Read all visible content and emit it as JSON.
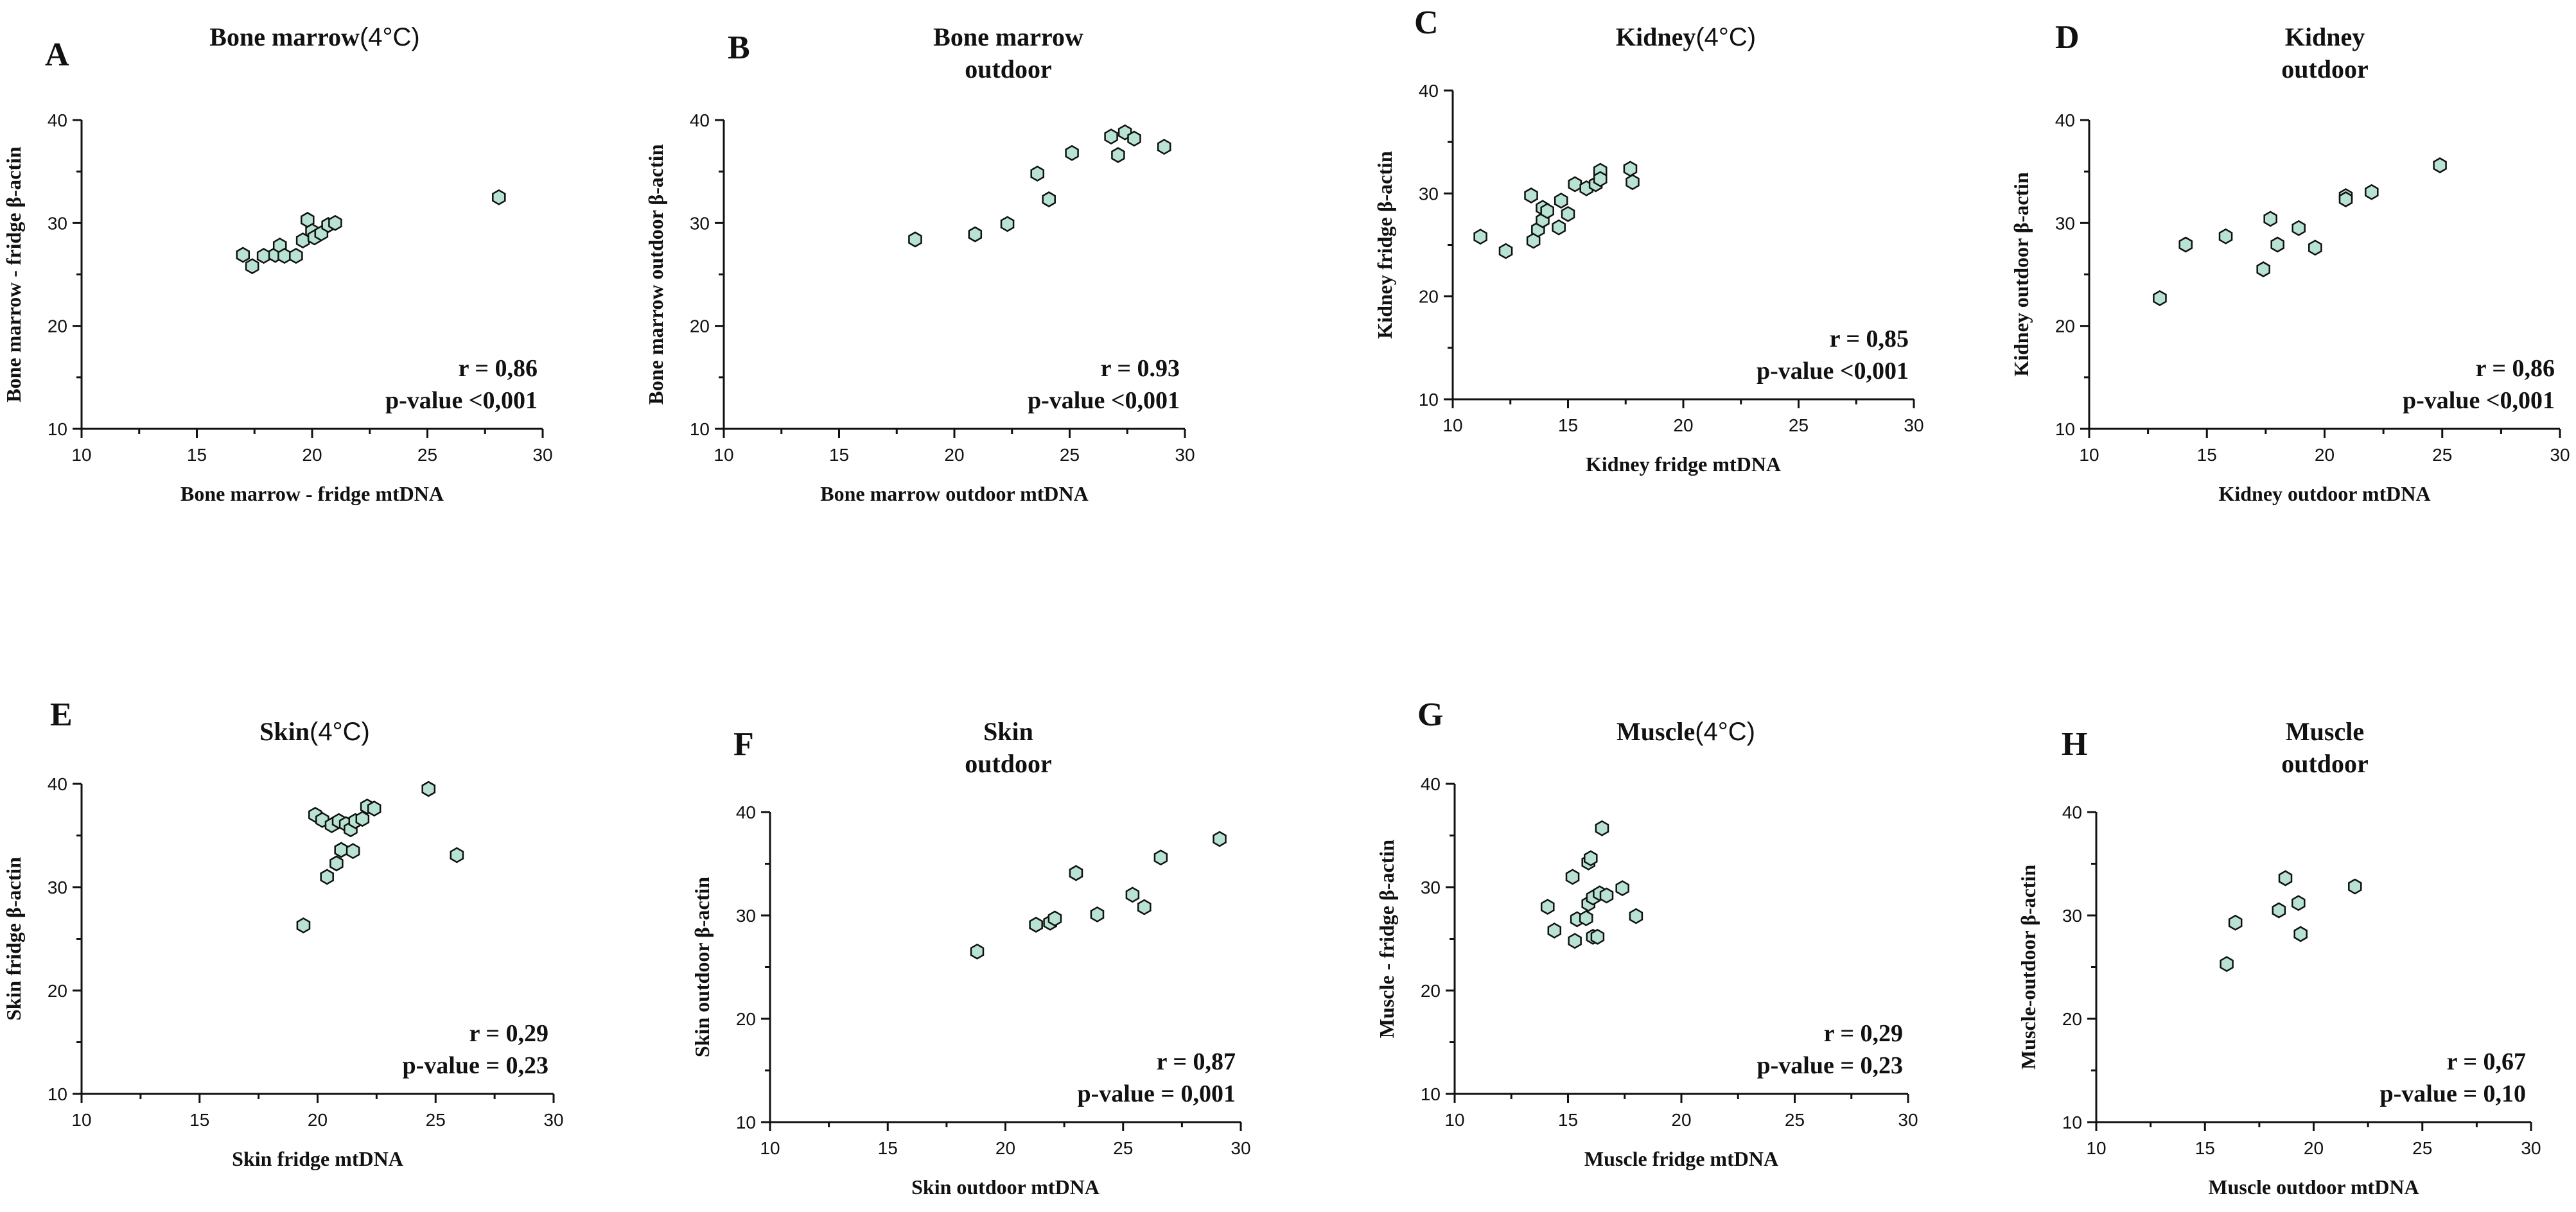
{
  "chart_data": [
    {
      "id": "A",
      "type": "scatter",
      "title": "Bone marrow",
      "title_suffix": "(4°C)",
      "title_line2": "",
      "xlabel": "Bone marrow - fridge mtDNA",
      "ylabel": "Bone marrow - fridge β-actin",
      "xlim": [
        10,
        30
      ],
      "ylim": [
        10,
        40
      ],
      "x_ticks": [
        10,
        15,
        20,
        25,
        30
      ],
      "y_ticks": [
        10,
        20,
        30,
        40
      ],
      "stat_r": "r = 0,86",
      "stat_p": "p-value <0,001",
      "points": [
        [
          17.0,
          26.9
        ],
        [
          17.4,
          25.8
        ],
        [
          17.9,
          26.8
        ],
        [
          18.4,
          26.9
        ],
        [
          18.6,
          27.8
        ],
        [
          18.8,
          26.8
        ],
        [
          19.3,
          26.8
        ],
        [
          19.6,
          28.3
        ],
        [
          19.8,
          30.3
        ],
        [
          20.0,
          29.2
        ],
        [
          20.1,
          28.6
        ],
        [
          20.4,
          29.0
        ],
        [
          20.7,
          29.8
        ],
        [
          21.0,
          30.0
        ],
        [
          28.1,
          32.5
        ]
      ]
    },
    {
      "id": "B",
      "type": "scatter",
      "title": "Bone marrow",
      "title_suffix": "",
      "title_line2": "outdoor",
      "xlabel": "Bone marrow outdoor mtDNA",
      "ylabel": "Bone marrow outdoor β-actin",
      "xlim": [
        10,
        30
      ],
      "ylim": [
        10,
        40
      ],
      "x_ticks": [
        10,
        15,
        20,
        25,
        30
      ],
      "y_ticks": [
        10,
        20,
        30,
        40
      ],
      "stat_r": "r = 0.93",
      "stat_p": "p-value <0,001",
      "points": [
        [
          18.3,
          28.4
        ],
        [
          20.9,
          28.9
        ],
        [
          22.3,
          29.9
        ],
        [
          23.6,
          34.8
        ],
        [
          24.1,
          32.3
        ],
        [
          25.1,
          36.8
        ],
        [
          26.8,
          38.4
        ],
        [
          27.1,
          36.6
        ],
        [
          27.4,
          38.8
        ],
        [
          27.8,
          38.2
        ],
        [
          29.1,
          37.4
        ]
      ]
    },
    {
      "id": "C",
      "type": "scatter",
      "title": "Kidney",
      "title_suffix": "(4°C)",
      "title_line2": "",
      "xlabel": "Kidney fridge mtDNA",
      "ylabel": "Kidney fridge β-actin",
      "xlim": [
        10,
        30
      ],
      "ylim": [
        10,
        40
      ],
      "x_ticks": [
        10,
        15,
        20,
        25,
        30
      ],
      "y_ticks": [
        10,
        20,
        30,
        40
      ],
      "stat_r": "r = 0,85",
      "stat_p": "p-value <0,001",
      "points": [
        [
          11.2,
          25.8
        ],
        [
          12.3,
          24.4
        ],
        [
          13.4,
          29.8
        ],
        [
          13.5,
          25.4
        ],
        [
          13.7,
          26.5
        ],
        [
          13.9,
          27.4
        ],
        [
          13.9,
          28.6
        ],
        [
          14.1,
          28.3
        ],
        [
          14.6,
          26.7
        ],
        [
          14.7,
          29.3
        ],
        [
          15.0,
          28.0
        ],
        [
          15.3,
          30.9
        ],
        [
          15.8,
          30.5
        ],
        [
          16.2,
          30.9
        ],
        [
          16.4,
          32.2
        ],
        [
          16.4,
          31.4
        ],
        [
          17.7,
          32.4
        ],
        [
          17.8,
          31.1
        ]
      ]
    },
    {
      "id": "D",
      "type": "scatter",
      "title": "Kidney",
      "title_suffix": "",
      "title_line2": "outdoor",
      "xlabel": "Kidney outdoor mtDNA",
      "ylabel": "Kidney outdoor β-actin",
      "xlim": [
        10,
        30
      ],
      "ylim": [
        10,
        40
      ],
      "x_ticks": [
        10,
        15,
        20,
        25,
        30
      ],
      "y_ticks": [
        10,
        20,
        30,
        40
      ],
      "stat_r": "r = 0,86",
      "stat_p": "p-value <0,001",
      "points": [
        [
          13.0,
          22.7
        ],
        [
          14.1,
          27.9
        ],
        [
          15.8,
          28.7
        ],
        [
          17.4,
          25.5
        ],
        [
          17.7,
          30.4
        ],
        [
          18.0,
          27.9
        ],
        [
          18.9,
          29.5
        ],
        [
          19.6,
          27.6
        ],
        [
          20.9,
          32.6
        ],
        [
          20.9,
          32.3
        ],
        [
          22.0,
          33.0
        ],
        [
          24.9,
          35.6
        ]
      ]
    },
    {
      "id": "E",
      "type": "scatter",
      "title": "Skin",
      "title_suffix": "(4°C)",
      "title_line2": "",
      "xlabel": "Skin fridge mtDNA",
      "ylabel": "Skin fridge β-actin",
      "xlim": [
        10,
        30
      ],
      "ylim": [
        10,
        40
      ],
      "x_ticks": [
        10,
        15,
        20,
        25,
        30
      ],
      "y_ticks": [
        10,
        20,
        30,
        40
      ],
      "stat_r": "r = 0,29",
      "stat_p": "p-value = 0,23",
      "points": [
        [
          19.4,
          26.3
        ],
        [
          19.9,
          37.0
        ],
        [
          20.2,
          36.5
        ],
        [
          20.4,
          31.0
        ],
        [
          20.6,
          36.0
        ],
        [
          20.8,
          32.3
        ],
        [
          20.9,
          36.4
        ],
        [
          21.0,
          33.6
        ],
        [
          21.2,
          36.1
        ],
        [
          21.4,
          35.6
        ],
        [
          21.5,
          33.5
        ],
        [
          21.6,
          36.4
        ],
        [
          21.9,
          36.6
        ],
        [
          22.1,
          37.8
        ],
        [
          22.4,
          37.6
        ],
        [
          24.7,
          39.5
        ],
        [
          25.9,
          33.1
        ]
      ]
    },
    {
      "id": "F",
      "type": "scatter",
      "title": "Skin",
      "title_suffix": "",
      "title_line2": "outdoor",
      "xlabel": "Skin outdoor mtDNA",
      "ylabel": "Skin outdoor β-actin",
      "xlim": [
        10,
        30
      ],
      "ylim": [
        10,
        40
      ],
      "x_ticks": [
        10,
        15,
        20,
        25,
        30
      ],
      "y_ticks": [
        10,
        20,
        30,
        40
      ],
      "stat_r": "r = 0,87",
      "stat_p": "p-value = 0,001",
      "points": [
        [
          18.8,
          26.5
        ],
        [
          21.3,
          29.1
        ],
        [
          21.9,
          29.3
        ],
        [
          22.1,
          29.7
        ],
        [
          23.0,
          34.1
        ],
        [
          23.9,
          30.1
        ],
        [
          25.4,
          32.0
        ],
        [
          25.9,
          30.8
        ],
        [
          26.6,
          35.6
        ],
        [
          29.1,
          37.4
        ]
      ]
    },
    {
      "id": "G",
      "type": "scatter",
      "title": "Muscle",
      "title_suffix": "(4°C)",
      "title_line2": "",
      "xlabel": "Muscle  fridge mtDNA",
      "ylabel": "Muscle - fridge β-actin",
      "xlim": [
        10,
        30
      ],
      "ylim": [
        10,
        40
      ],
      "x_ticks": [
        10,
        15,
        20,
        25,
        30
      ],
      "y_ticks": [
        10,
        20,
        30,
        40
      ],
      "stat_r": "r = 0,29",
      "stat_p": "p-value = 0,23",
      "points": [
        [
          14.1,
          28.1
        ],
        [
          14.4,
          25.8
        ],
        [
          15.2,
          31.0
        ],
        [
          15.3,
          24.8
        ],
        [
          15.4,
          26.9
        ],
        [
          15.8,
          27.0
        ],
        [
          15.9,
          28.4
        ],
        [
          15.9,
          32.4
        ],
        [
          16.0,
          32.8
        ],
        [
          16.1,
          25.2
        ],
        [
          16.1,
          29.0
        ],
        [
          16.3,
          25.2
        ],
        [
          16.4,
          29.4
        ],
        [
          16.5,
          35.7
        ],
        [
          16.7,
          29.2
        ],
        [
          17.4,
          29.9
        ],
        [
          18.0,
          27.2
        ]
      ]
    },
    {
      "id": "H",
      "type": "scatter",
      "title": "Muscle",
      "title_suffix": "",
      "title_line2": "outdoor",
      "xlabel": "Muscle outdoor mtDNA",
      "ylabel": "Muscle-outdoor β-actin",
      "xlim": [
        10,
        30
      ],
      "ylim": [
        10,
        40
      ],
      "x_ticks": [
        10,
        15,
        20,
        25,
        30
      ],
      "y_ticks": [
        10,
        20,
        30,
        40
      ],
      "stat_r": "r = 0,67",
      "stat_p": "p-value = 0,10",
      "points": [
        [
          16.0,
          25.3
        ],
        [
          16.4,
          29.3
        ],
        [
          18.4,
          30.5
        ],
        [
          18.7,
          33.6
        ],
        [
          19.3,
          31.2
        ],
        [
          19.4,
          28.2
        ],
        [
          21.9,
          32.8
        ]
      ]
    }
  ],
  "style": {
    "point_fill": "#b8e3d2",
    "point_stroke": "#111111",
    "axis_color": "#111111"
  }
}
